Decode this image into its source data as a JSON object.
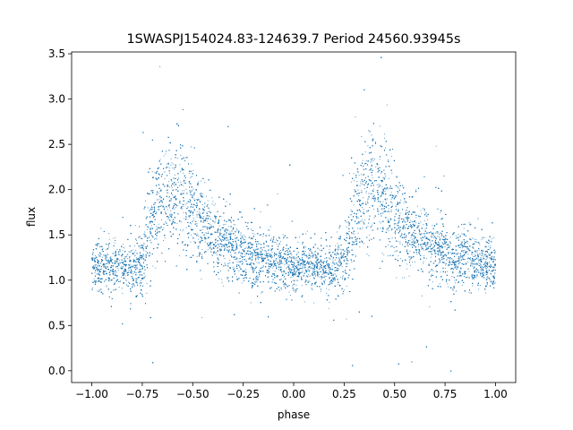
{
  "chart_data": {
    "type": "scatter",
    "title": "1SWASPJ154024.83-124639.7 Period 24560.93945s",
    "xlabel": "phase",
    "ylabel": "flux",
    "xlim": [
      -1.1,
      1.1
    ],
    "ylim": [
      -0.13,
      3.52
    ],
    "x_ticks": [
      -1.0,
      -0.75,
      -0.5,
      -0.25,
      0.0,
      0.25,
      0.5,
      0.75,
      1.0
    ],
    "x_tick_labels": [
      "−1.00",
      "−0.75",
      "−0.50",
      "−0.25",
      "0.00",
      "0.25",
      "0.50",
      "0.75",
      "1.00"
    ],
    "y_ticks": [
      0.0,
      0.5,
      1.0,
      1.5,
      2.0,
      2.5,
      3.0,
      3.5
    ],
    "y_tick_labels": [
      "0.0",
      "0.5",
      "1.0",
      "1.5",
      "2.0",
      "2.5",
      "3.0",
      "3.5"
    ],
    "grid": false,
    "marker_color": "#1f77b4",
    "point_count": 16000,
    "phase_range": [
      -1.0,
      1.0
    ],
    "series": [
      {
        "points_description_note": null,
        "profile": {
          "phase": [
            0.0,
            0.1,
            0.2,
            0.25,
            0.3,
            0.35,
            0.4,
            0.45,
            0.5,
            0.55,
            0.6,
            0.7,
            0.8,
            0.9,
            1.0
          ],
          "flux": [
            1.15,
            1.15,
            1.12,
            1.2,
            1.7,
            1.95,
            2.0,
            1.95,
            1.75,
            1.6,
            1.5,
            1.35,
            1.25,
            1.2,
            1.15
          ],
          "scatter": [
            0.13,
            0.13,
            0.13,
            0.2,
            0.3,
            0.3,
            0.3,
            0.28,
            0.25,
            0.22,
            0.2,
            0.18,
            0.16,
            0.15,
            0.13
          ]
        }
      }
    ]
  }
}
